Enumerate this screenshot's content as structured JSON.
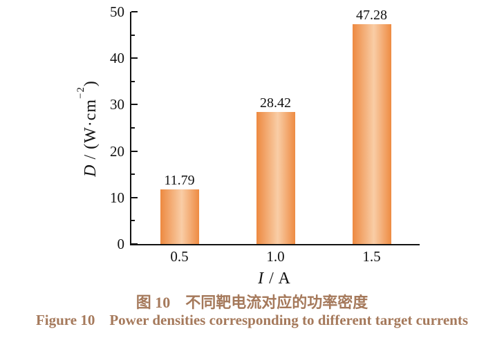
{
  "chart_data": {
    "type": "bar",
    "categories": [
      "0.5",
      "1.0",
      "1.5"
    ],
    "values": [
      11.79,
      28.42,
      47.28
    ],
    "bar_labels": [
      "11.79",
      "28.42",
      "47.28"
    ],
    "title": "图 10　不同靶电流对应的功率密度",
    "title_en": "Figure 10 Power densities corresponding to different target currents",
    "xlabel": "I / A",
    "ylabel": "D / (W·cm⁻²)",
    "xlabel_parts": {
      "var": "I",
      "rest": " / A"
    },
    "ylabel_parts": {
      "var": "D",
      "mid": " / (W·cm",
      "sup": "−2",
      "end": ")"
    },
    "ylim": [
      0,
      50
    ],
    "y_major_ticks": [
      0,
      10,
      20,
      30,
      40,
      50
    ],
    "y_minor_ticks": [
      5,
      15,
      25,
      35,
      45
    ],
    "grid": false,
    "legend": "none",
    "ticks_direction": "in",
    "colors": {
      "bar_edge": "#ed8940",
      "bar_edge_right": "#ee8b42",
      "bar_light": "#f9cda6",
      "axis": "#111111",
      "text": "#111111",
      "caption": "#a5795b"
    }
  }
}
